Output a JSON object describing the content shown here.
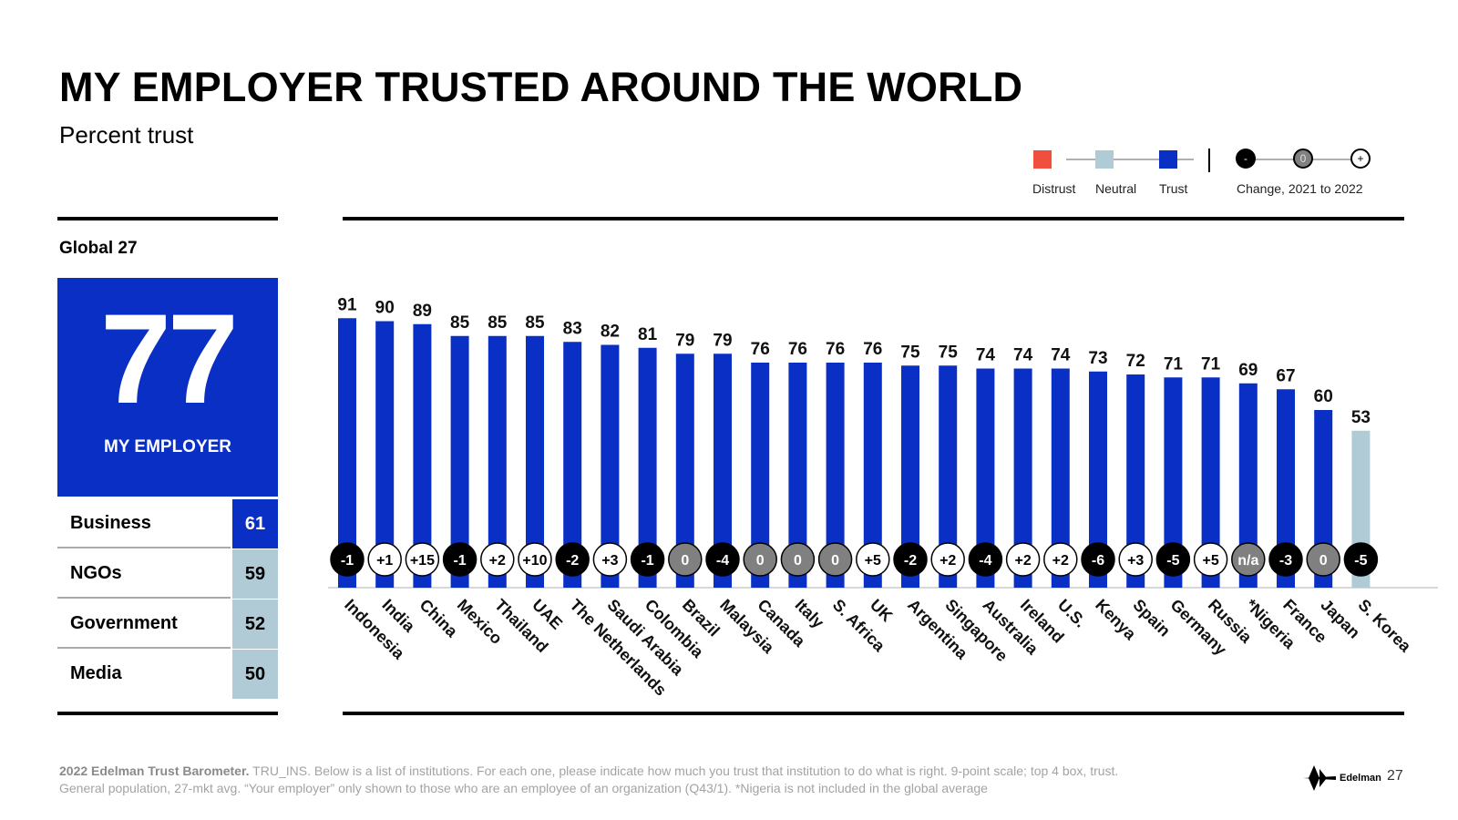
{
  "header": {
    "title": "MY EMPLOYER TRUSTED AROUND THE WORLD",
    "subtitle": "Percent trust"
  },
  "legend": {
    "distrust": "Distrust",
    "neutral": "Neutral",
    "trust": "Trust",
    "change_label": "Change, 2021 to 2022",
    "change_minus": "-",
    "change_zero": "0",
    "change_plus": "+"
  },
  "colors": {
    "trust": "#0a2fc5",
    "neutral": "#b0cad6",
    "distrust": "#f04e3e",
    "change_negative": "#000000",
    "change_zero": "#808080",
    "change_positive": "#ffffff"
  },
  "global_panel": {
    "label": "Global 27",
    "score": "77",
    "score_label": "MY EMPLOYER",
    "institutions": [
      {
        "name": "Business",
        "value": "61",
        "color": "#0a2fc5"
      },
      {
        "name": "NGOs",
        "value": "59",
        "color": "#b0cad6"
      },
      {
        "name": "Government",
        "value": "52",
        "color": "#b0cad6"
      },
      {
        "name": "Media",
        "value": "50",
        "color": "#b0cad6"
      }
    ]
  },
  "chart_data": {
    "type": "bar",
    "categories": [
      "Indonesia",
      "India",
      "China",
      "Mexico",
      "Thailand",
      "UAE",
      "The Netherlands",
      "Saudi Arabia",
      "Colombia",
      "Brazil",
      "Malaysia",
      "Canada",
      "Italy",
      "S. Africa",
      "UK",
      "Argentina",
      "Singapore",
      "Australia",
      "Ireland",
      "U.S.",
      "Kenya",
      "Spain",
      "Germany",
      "Russia",
      "*Nigeria",
      "France",
      "Japan",
      "S. Korea"
    ],
    "values": [
      91,
      90,
      89,
      85,
      85,
      85,
      83,
      82,
      81,
      79,
      79,
      76,
      76,
      76,
      76,
      75,
      75,
      74,
      74,
      74,
      73,
      72,
      71,
      71,
      69,
      67,
      60,
      53
    ],
    "change": [
      "-1",
      "+1",
      "+15",
      "-1",
      "+2",
      "+10",
      "-2",
      "+3",
      "-1",
      "0",
      "-4",
      "0",
      "0",
      "0",
      "+5",
      "-2",
      "+2",
      "-4",
      "+2",
      "+2",
      "-6",
      "+3",
      "-5",
      "+5",
      "n/a",
      "-3",
      "0",
      "-5"
    ],
    "category_level": [
      "trust",
      "trust",
      "trust",
      "trust",
      "trust",
      "trust",
      "trust",
      "trust",
      "trust",
      "trust",
      "trust",
      "trust",
      "trust",
      "trust",
      "trust",
      "trust",
      "trust",
      "trust",
      "trust",
      "trust",
      "trust",
      "trust",
      "trust",
      "trust",
      "trust",
      "trust",
      "trust",
      "neutral"
    ],
    "ylim": [
      0,
      100
    ]
  },
  "footer": {
    "source_bold": "2022 Edelman Trust Barometer.",
    "source_text": " TRU_INS. Below is a list of institutions. For each one, please indicate how much you trust that institution to do what is right. 9-point scale; top 4 box, trust.",
    "line2": "General population, 27-mkt avg. “Your employer” only shown to those who are an employee of an organization (Q43/1). *Nigeria is not included in the global average",
    "logo_text": "Edelman",
    "page_number": "27"
  }
}
